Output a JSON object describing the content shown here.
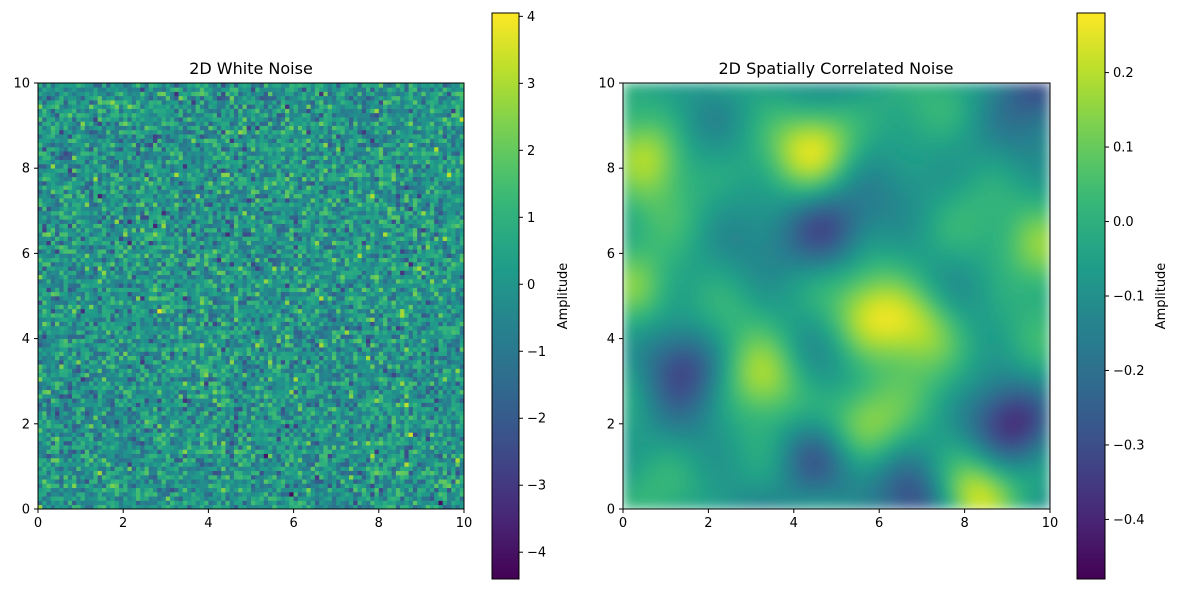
{
  "chart_data": [
    {
      "type": "heatmap",
      "title": "2D White Noise",
      "xlabel": "",
      "ylabel": "",
      "xlim": [
        0,
        10
      ],
      "ylim": [
        0,
        10
      ],
      "xticks": [
        0,
        2,
        4,
        6,
        8,
        10
      ],
      "yticks": [
        0,
        2,
        4,
        6,
        8,
        10
      ],
      "xtick_labels": [
        "0",
        "2",
        "4",
        "6",
        "8",
        "10"
      ],
      "ytick_labels": [
        "0",
        "2",
        "4",
        "6",
        "8",
        "10"
      ],
      "grid": false,
      "colormap": "viridis",
      "grid_resolution": [
        100,
        100
      ],
      "value_range": [
        -4.4,
        4.05
      ],
      "colorbar": {
        "label": "Amplitude",
        "ticks": [
          4,
          3,
          2,
          1,
          0,
          -1,
          -2,
          -3,
          -4
        ],
        "tick_labels": [
          "4",
          "3",
          "2",
          "1",
          "0",
          "−1",
          "−2",
          "−3",
          "−4"
        ]
      }
    },
    {
      "type": "heatmap",
      "title": "2D Spatially Correlated Noise",
      "xlabel": "",
      "ylabel": "",
      "xlim": [
        0,
        10
      ],
      "ylim": [
        0,
        10
      ],
      "xticks": [
        0,
        2,
        4,
        6,
        8,
        10
      ],
      "yticks": [
        0,
        2,
        4,
        6,
        8,
        10
      ],
      "xtick_labels": [
        "0",
        "2",
        "4",
        "6",
        "8",
        "10"
      ],
      "ytick_labels": [
        "0",
        "2",
        "4",
        "6",
        "8",
        "10"
      ],
      "grid": false,
      "colormap": "viridis",
      "grid_resolution": [
        100,
        100
      ],
      "value_range": [
        -0.48,
        0.28
      ],
      "colorbar": {
        "label": "Amplitude",
        "ticks": [
          0.2,
          0.1,
          0.0,
          -0.1,
          -0.2,
          -0.3,
          -0.4
        ],
        "tick_labels": [
          "0.2",
          "0.1",
          "0.0",
          "−0.1",
          "−0.2",
          "−0.3",
          "−0.4"
        ]
      },
      "features": [
        {
          "x": 0.6,
          "y": 8.3,
          "level": "high"
        },
        {
          "x": 4.5,
          "y": 8.5,
          "level": "high"
        },
        {
          "x": 5.8,
          "y": 4.5,
          "level": "high"
        },
        {
          "x": 7.0,
          "y": 4.3,
          "level": "high"
        },
        {
          "x": 10.0,
          "y": 6.1,
          "level": "high"
        },
        {
          "x": 5.6,
          "y": 1.9,
          "level": "high"
        },
        {
          "x": 8.2,
          "y": 0.3,
          "level": "high"
        },
        {
          "x": 0.2,
          "y": 5.2,
          "level": "high"
        },
        {
          "x": 3.3,
          "y": 3.1,
          "level": "high"
        },
        {
          "x": 1.4,
          "y": 3.4,
          "level": "low"
        },
        {
          "x": 7.0,
          "y": 0.1,
          "level": "low"
        },
        {
          "x": 9.8,
          "y": 10.0,
          "level": "low"
        },
        {
          "x": 9.1,
          "y": 2.0,
          "level": "low"
        },
        {
          "x": 4.8,
          "y": 6.5,
          "level": "low"
        },
        {
          "x": 4.5,
          "y": 1.3,
          "level": "low"
        }
      ]
    }
  ]
}
